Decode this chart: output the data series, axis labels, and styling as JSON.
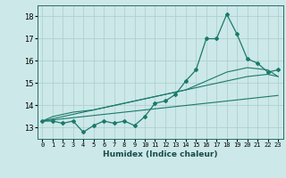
{
  "xlabel": "Humidex (Indice chaleur)",
  "bg_color": "#cce8e8",
  "grid_color": "#aacccc",
  "line_color": "#1a7a6a",
  "x_data": [
    0,
    1,
    2,
    3,
    4,
    5,
    6,
    7,
    8,
    9,
    10,
    11,
    12,
    13,
    14,
    15,
    16,
    17,
    18,
    19,
    20,
    21,
    22,
    23
  ],
  "y_main": [
    13.3,
    13.3,
    13.2,
    13.3,
    12.8,
    13.1,
    13.3,
    13.2,
    13.3,
    13.1,
    13.5,
    14.1,
    14.2,
    14.5,
    15.1,
    15.6,
    17.0,
    17.0,
    18.1,
    17.2,
    16.1,
    15.9,
    15.5,
    15.6
  ],
  "y_lin1": [
    13.3,
    13.35,
    13.4,
    13.45,
    13.5,
    13.55,
    13.6,
    13.65,
    13.7,
    13.75,
    13.8,
    13.85,
    13.9,
    13.95,
    14.0,
    14.05,
    14.1,
    14.15,
    14.2,
    14.25,
    14.3,
    14.35,
    14.4,
    14.45
  ],
  "y_lin2": [
    13.3,
    13.4,
    13.5,
    13.6,
    13.7,
    13.8,
    13.9,
    14.0,
    14.1,
    14.2,
    14.3,
    14.4,
    14.5,
    14.6,
    14.7,
    14.8,
    14.9,
    15.0,
    15.1,
    15.2,
    15.3,
    15.35,
    15.4,
    15.3
  ],
  "y_lin3": [
    13.3,
    13.5,
    13.6,
    13.7,
    13.75,
    13.8,
    13.9,
    14.0,
    14.1,
    14.2,
    14.3,
    14.4,
    14.5,
    14.6,
    14.7,
    14.9,
    15.1,
    15.3,
    15.5,
    15.6,
    15.7,
    15.65,
    15.6,
    15.3
  ],
  "ylim": [
    12.5,
    18.5
  ],
  "xlim": [
    -0.5,
    23.5
  ],
  "yticks": [
    13,
    14,
    15,
    16,
    17,
    18
  ],
  "xticks": [
    0,
    1,
    2,
    3,
    4,
    5,
    6,
    7,
    8,
    9,
    10,
    11,
    12,
    13,
    14,
    15,
    16,
    17,
    18,
    19,
    20,
    21,
    22,
    23
  ]
}
